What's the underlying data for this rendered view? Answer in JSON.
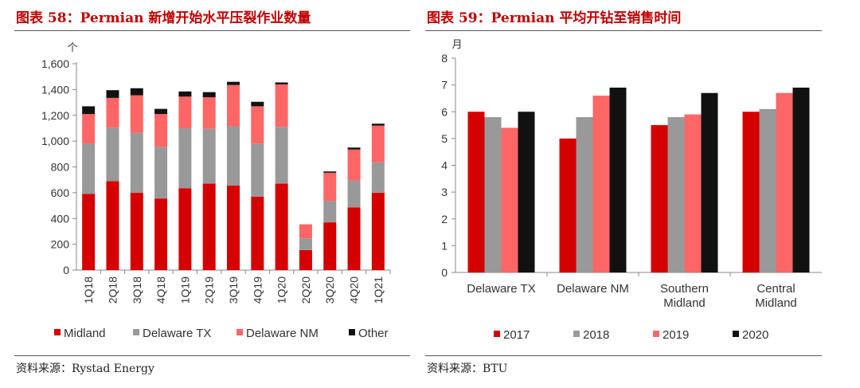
{
  "left": {
    "title": "图表 58：Permian 新增开始水平压裂作业数量",
    "source": "资料来源：Rystad Energy"
  },
  "right": {
    "title": "图表 59：Permian 平均开钻至销售时间",
    "source": "资料来源：BTU"
  },
  "chart_data": [
    {
      "type": "bar",
      "stacked": true,
      "categories": [
        "1Q18",
        "2Q18",
        "3Q18",
        "4Q18",
        "1Q19",
        "2Q19",
        "3Q19",
        "4Q19",
        "1Q20",
        "2Q20",
        "3Q20",
        "4Q20",
        "1Q21"
      ],
      "series": [
        {
          "name": "Midland",
          "color": "#d50000",
          "values": [
            590,
            690,
            600,
            555,
            635,
            670,
            655,
            570,
            670,
            155,
            370,
            485,
            600
          ]
        },
        {
          "name": "Delaware TX",
          "color": "#999999",
          "values": [
            390,
            415,
            465,
            400,
            465,
            425,
            460,
            410,
            440,
            90,
            165,
            210,
            235
          ]
        },
        {
          "name": "Delaware NM",
          "color": "#ff6666",
          "values": [
            230,
            230,
            290,
            255,
            245,
            245,
            320,
            290,
            330,
            110,
            220,
            240,
            285
          ]
        },
        {
          "name": "Other",
          "color": "#111111",
          "values": [
            60,
            60,
            55,
            40,
            40,
            40,
            25,
            35,
            15,
            0,
            10,
            15,
            15
          ]
        }
      ],
      "ylabel": "个",
      "ylim": [
        0,
        1600
      ],
      "yticks": [
        0,
        200,
        400,
        600,
        800,
        1000,
        1200,
        1400,
        1600
      ],
      "ytick_labels": [
        "0",
        "200",
        "400",
        "600",
        "800",
        "1,000",
        "1,200",
        "1,400",
        "1,600"
      ],
      "grid": false,
      "legend": "bottom"
    },
    {
      "type": "bar",
      "categories": [
        "Delaware TX",
        "Delaware NM",
        "Southern Midland",
        "Central Midland"
      ],
      "series": [
        {
          "name": "2017",
          "color": "#d50000",
          "values": [
            6.0,
            5.0,
            5.5,
            6.0
          ]
        },
        {
          "name": "2018",
          "color": "#999999",
          "values": [
            5.8,
            5.8,
            5.8,
            6.1
          ]
        },
        {
          "name": "2019",
          "color": "#ff6666",
          "values": [
            5.4,
            6.6,
            5.9,
            6.7
          ]
        },
        {
          "name": "2020",
          "color": "#111111",
          "values": [
            6.0,
            6.9,
            6.7,
            6.9
          ]
        }
      ],
      "ylabel": "月",
      "ylim": [
        0,
        8
      ],
      "yticks": [
        0,
        1,
        2,
        3,
        4,
        5,
        6,
        7,
        8
      ],
      "ytick_labels": [
        "0",
        "1",
        "2",
        "3",
        "4",
        "5",
        "6",
        "7",
        "8"
      ],
      "grid": false,
      "legend": "bottom"
    }
  ]
}
